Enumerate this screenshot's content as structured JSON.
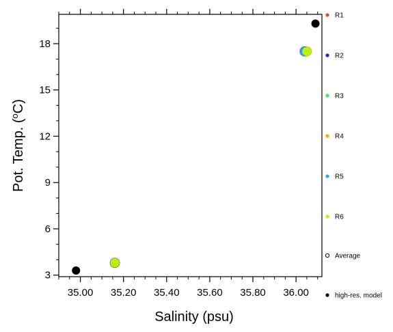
{
  "chart_data": {
    "type": "scatter",
    "title": "",
    "xlabel": "Salinity (psu)",
    "ylabel": "Pot. Temp. (°C)",
    "ylabel_parts": {
      "before": "Pot. Temp. (",
      "degree": "o",
      "after": "C)"
    },
    "xlim": [
      34.9,
      36.12
    ],
    "ylim": [
      2.9,
      19.9
    ],
    "x_ticks": [
      {
        "value": 35.0,
        "label": "35.00"
      },
      {
        "value": 35.2,
        "label": "35.20"
      },
      {
        "value": 35.4,
        "label": "35.40"
      },
      {
        "value": 35.6,
        "label": "35.60"
      },
      {
        "value": 35.8,
        "label": "35.80"
      },
      {
        "value": 36.0,
        "label": "36.00"
      }
    ],
    "y_ticks": [
      {
        "value": 3,
        "label": "3"
      },
      {
        "value": 6,
        "label": "6"
      },
      {
        "value": 9,
        "label": "9"
      },
      {
        "value": 12,
        "label": "12"
      },
      {
        "value": 15,
        "label": "15"
      },
      {
        "value": 18,
        "label": "18"
      }
    ],
    "grid": false,
    "legend_position": "right-outside",
    "series": [
      {
        "name": "R1",
        "color": "#ee4422",
        "marker": "filled-circle",
        "points": [
          {
            "x": 36.04,
            "y": 17.5
          },
          {
            "x": 35.16,
            "y": 3.8
          }
        ]
      },
      {
        "name": "R2",
        "color": "#4411dd",
        "marker": "filled-circle",
        "points": [
          {
            "x": 36.04,
            "y": 17.5
          },
          {
            "x": 35.16,
            "y": 3.8
          }
        ]
      },
      {
        "name": "R3",
        "color": "#33ee55",
        "marker": "filled-circle",
        "points": [
          {
            "x": 36.04,
            "y": 17.5
          },
          {
            "x": 35.16,
            "y": 3.8
          }
        ]
      },
      {
        "name": "R4",
        "color": "#ffaa00",
        "marker": "filled-circle",
        "points": [
          {
            "x": 36.045,
            "y": 17.5
          },
          {
            "x": 35.16,
            "y": 3.8
          }
        ]
      },
      {
        "name": "R5",
        "color": "#22aaff",
        "marker": "filled-circle",
        "points": [
          {
            "x": 36.04,
            "y": 17.5
          },
          {
            "x": 35.16,
            "y": 3.8
          }
        ]
      },
      {
        "name": "R6",
        "color": "#bbee11",
        "marker": "filled-circle",
        "points": [
          {
            "x": 36.05,
            "y": 17.5
          },
          {
            "x": 35.16,
            "y": 3.8
          }
        ]
      },
      {
        "name": "Average",
        "color": "#000000",
        "marker": "open-circle",
        "points": []
      },
      {
        "name": "high-res. model",
        "color": "#000000",
        "marker": "filled-circle",
        "points": [
          {
            "x": 34.98,
            "y": 3.3
          },
          {
            "x": 36.09,
            "y": 19.3
          }
        ]
      }
    ]
  }
}
